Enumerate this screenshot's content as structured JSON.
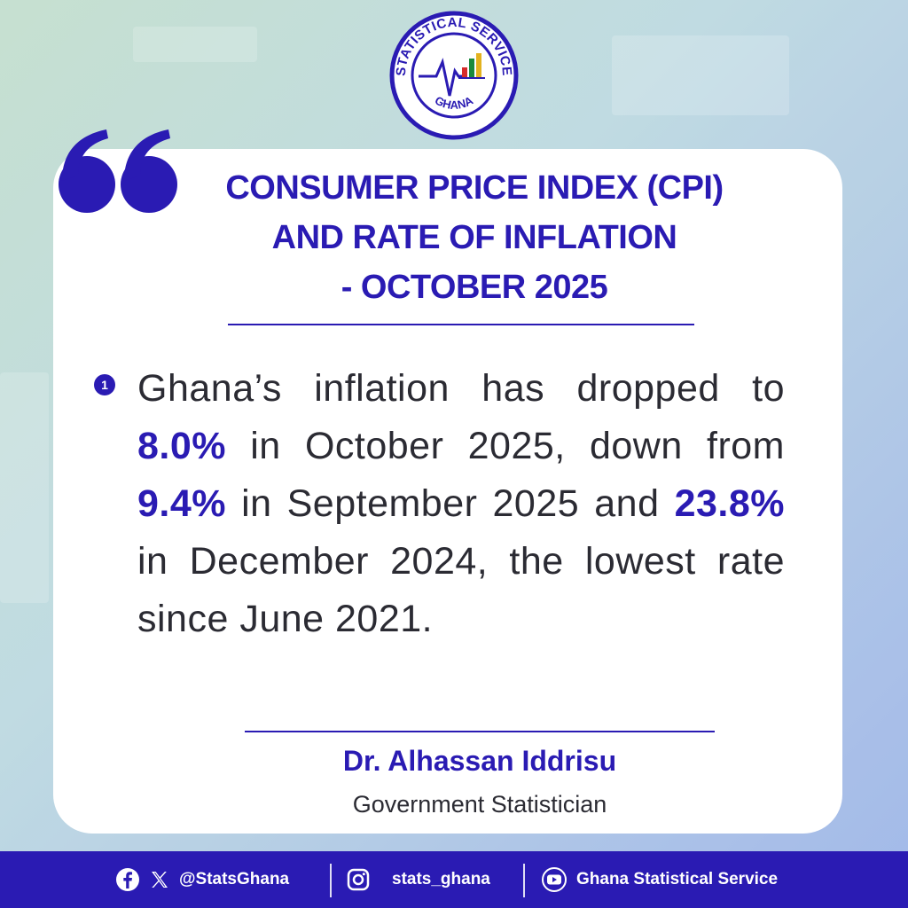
{
  "logo": {
    "top_text": "STATISTICAL SERVICE",
    "bottom_text": "GHANA",
    "icon": "statistical-service-seal"
  },
  "title": {
    "line1": "CONSUMER PRICE INDEX (CPI)",
    "line2": "AND RATE OF INFLATION",
    "line3": "- OCTOBER 2025"
  },
  "bullet": {
    "number": "1",
    "text1": "Ghana’s inflation has dropped to ",
    "value1": "8.0%",
    "text2": " in October 2025, down from ",
    "value2": "9.4%",
    "text3": " in September 2025 and ",
    "value3": "23.8%",
    "text4": " in December 2024, the lowest rate since June 2021."
  },
  "signature": {
    "name": "Dr. Alhassan Iddrisu",
    "role": "Government Statistician"
  },
  "footer": {
    "handle_fb_x": "@StatsGhana",
    "handle_instagram": "stats_ghana",
    "handle_youtube": "Ghana Statistical Service"
  },
  "colors": {
    "brand": "#2a1bb3",
    "text": "#2b2b33",
    "card": "#ffffff"
  }
}
